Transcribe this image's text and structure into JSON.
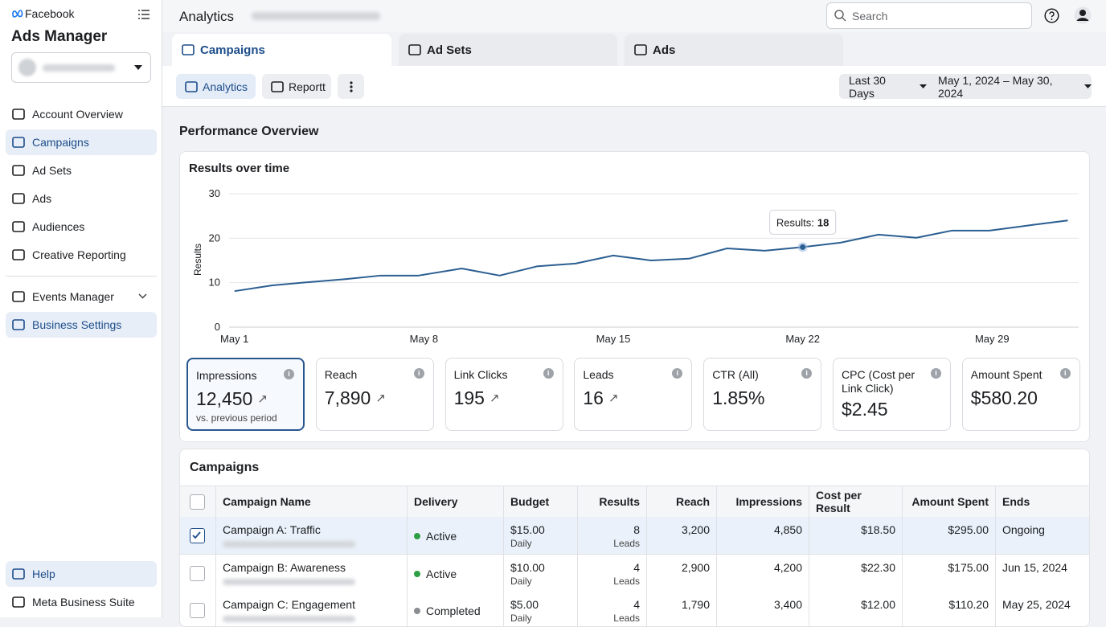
{
  "sidebar": {
    "brand": "Facebook",
    "title": "Ads Manager",
    "nav": [
      "Account Overview",
      "Campaigns",
      "Ad Sets",
      "Ads",
      "Audiences",
      "Creative Reporting"
    ],
    "tools": [
      "Events Manager",
      "Business Settings"
    ],
    "footer": [
      "Help",
      "Meta Business Suite"
    ]
  },
  "topbar": {
    "title": "Analytics",
    "search": "Search"
  },
  "tabs": [
    "Campaigns",
    "Ad Sets",
    "Ads"
  ],
  "toolbar": {
    "buttons": [
      "Analytics",
      "Reportt"
    ],
    "range": "Last 30 Days",
    "dates": "May 1, 2024 – May 30, 2024"
  },
  "section_title": "Performance Overview",
  "chart_data": {
    "type": "line",
    "title": "Results over time",
    "y_label": "Results",
    "x": [
      1,
      2.4,
      3.7,
      5.1,
      6.4,
      7.8,
      9.4,
      10.8,
      12.2,
      13.6,
      15,
      16.4,
      17.8,
      19.2,
      20.6,
      22,
      23.4,
      24.8,
      26.2,
      27.5,
      28.9,
      30.5,
      31.8
    ],
    "series": [
      {
        "color": "#2b5e91",
        "values": [
          8.1,
          9.4,
          10.1,
          10.8,
          11.6,
          11.6,
          13.2,
          11.6,
          13.7,
          14.3,
          16.1,
          15,
          15.4,
          17.7,
          17.2,
          18,
          19,
          20.8,
          20.1,
          21.7,
          21.7,
          23,
          24
        ]
      }
    ],
    "xlim": [
      0.8,
      32.2
    ],
    "xticks": [
      {
        "value": 1,
        "label": "May 1"
      },
      {
        "value": 8,
        "label": "May 8"
      },
      {
        "value": 15,
        "label": "May 15"
      },
      {
        "value": 22,
        "label": "May 22"
      },
      {
        "value": 29,
        "label": "May 29"
      }
    ],
    "ylim": [
      0,
      30
    ],
    "yticks": [
      0,
      10,
      20,
      30
    ],
    "grid": true,
    "tooltip": {
      "label": "Results:",
      "value": 18
    }
  },
  "metrics": [
    {
      "label": "Impressions",
      "value": "12,450",
      "note": "vs. previous period"
    },
    {
      "label": "Reach",
      "value": "7,890"
    },
    {
      "label": "Link Clicks",
      "value": "195"
    },
    {
      "label": "Leads",
      "value": "16"
    },
    {
      "label": "CTR (All)",
      "value": "1.85%"
    },
    {
      "label": "CPC (Cost per Link Click)",
      "value": "$2.45"
    },
    {
      "label": "Amount Spent",
      "value": "$580.20"
    }
  ],
  "campaigns": {
    "title": "Campaigns",
    "columns": [
      "Campaign Name",
      "Delivery",
      "Budget",
      "Results",
      "Reach",
      "Impressions",
      "Cost per Result",
      "Amount Spent",
      "Ends"
    ],
    "rows": [
      {
        "checked": true,
        "dot_color": "#2e9e44",
        "name": "Campaign A: Traffic",
        "delivery": "Active",
        "budget": "$15.00",
        "budget_note": "Daily",
        "results": 8,
        "results_note": "Leads",
        "reach": "3,200",
        "impressions": "4,850",
        "cost": "$18.50",
        "spent": "$295.00",
        "ends": "Ongoing"
      },
      {
        "checked": false,
        "dot_color": "#2e9e44",
        "name": "Campaign B: Awareness",
        "delivery": "Active",
        "budget": "$10.00",
        "budget_note": "Daily",
        "results": 4,
        "results_note": "Leads",
        "reach": "2,900",
        "impressions": "4,200",
        "cost": "$22.30",
        "spent": "$175.00",
        "ends": "Jun 15, 2024"
      },
      {
        "checked": false,
        "dot_color": "#8a8d91",
        "name": "Campaign C: Engagement",
        "delivery": "Completed",
        "budget": "$5.00",
        "budget_note": "Daily",
        "results": 4,
        "results_note": "Leads",
        "reach": "1,790",
        "impressions": "3,400",
        "cost": "$12.00",
        "spent": "$110.20",
        "ends": "May 25, 2024"
      }
    ]
  }
}
